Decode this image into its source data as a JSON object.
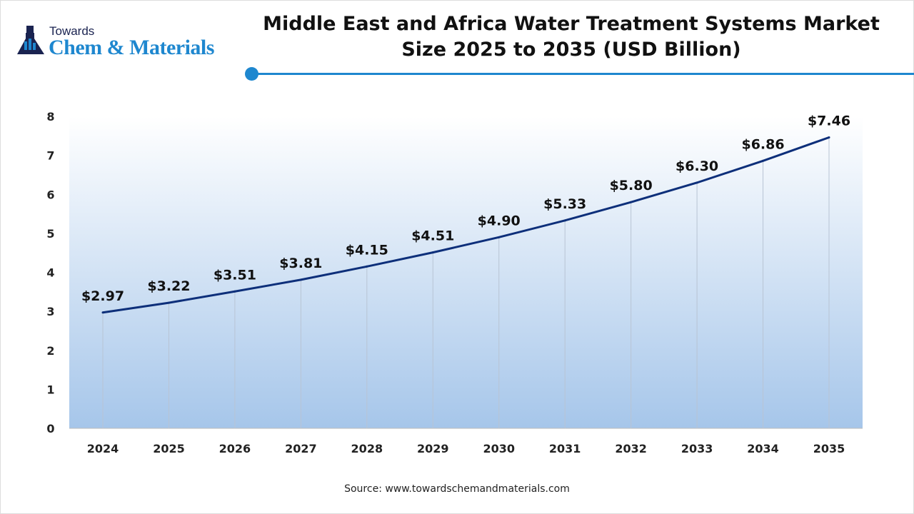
{
  "logo": {
    "line1": "Towards",
    "line2": "Chem & Materials"
  },
  "title": "Middle East and Africa Water Treatment Systems Market Size 2025 to 2035 (USD Billion)",
  "source": "Source: www.towardschemandmaterials.com",
  "chart_data": {
    "type": "line",
    "title": "Middle East and Africa Water Treatment Systems Market Size 2025 to 2035 (USD Billion)",
    "categories": [
      "2024",
      "2025",
      "2026",
      "2027",
      "2028",
      "2029",
      "2030",
      "2031",
      "2032",
      "2033",
      "2034",
      "2035"
    ],
    "values": [
      2.97,
      3.22,
      3.51,
      3.81,
      4.15,
      4.51,
      4.9,
      5.33,
      5.8,
      6.3,
      6.86,
      7.46
    ],
    "labels": [
      "$2.97",
      "$3.22",
      "$3.51",
      "$3.81",
      "$4.15",
      "$4.51",
      "$4.90",
      "$5.33",
      "$5.80",
      "$6.30",
      "$6.86",
      "$7.46"
    ],
    "ylim": [
      0,
      8
    ],
    "yticks": [
      "0",
      "1",
      "2",
      "3",
      "4",
      "5",
      "6",
      "7",
      "8"
    ],
    "line_color": "#0d2f7a",
    "area_gradient": [
      "#ffffff",
      "#a6c6ea"
    ],
    "grid": "vertical lines at categories"
  }
}
